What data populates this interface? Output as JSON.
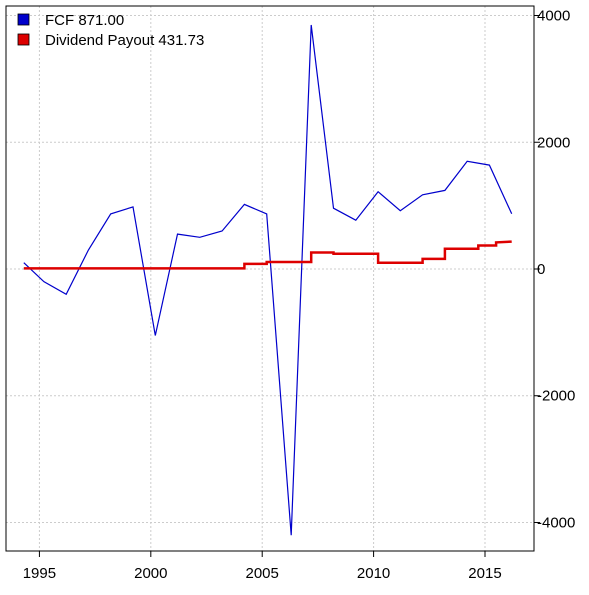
{
  "chart_data": {
    "type": "line",
    "title": "",
    "xlabel": "",
    "ylabel": "",
    "xlim": [
      1993.5,
      2017.2
    ],
    "ylim": [
      -4450,
      4150
    ],
    "x_ticks": [
      1995,
      2000,
      2005,
      2010,
      2015
    ],
    "y_ticks": [
      -4000,
      -2000,
      0,
      2000,
      4000
    ],
    "grid": true,
    "legend_position": "top-left",
    "series": [
      {
        "name": "FCF 871.00",
        "color": "#0000cc",
        "style": "line",
        "points": [
          [
            1994.3,
            100
          ],
          [
            1995.2,
            -200
          ],
          [
            1996.2,
            -400
          ],
          [
            1997.2,
            300
          ],
          [
            1998.2,
            870
          ],
          [
            1999.2,
            980
          ],
          [
            2000.2,
            -1050
          ],
          [
            2001.2,
            550
          ],
          [
            2002.2,
            500
          ],
          [
            2003.2,
            600
          ],
          [
            2004.2,
            1020
          ],
          [
            2005.2,
            870
          ],
          [
            2006.3,
            -4200
          ],
          [
            2007.2,
            3850
          ],
          [
            2008.2,
            960
          ],
          [
            2009.2,
            770
          ],
          [
            2010.2,
            1220
          ],
          [
            2011.2,
            920
          ],
          [
            2012.2,
            1170
          ],
          [
            2013.2,
            1240
          ],
          [
            2014.2,
            1700
          ],
          [
            2015.2,
            1640
          ],
          [
            2016.2,
            871
          ]
        ]
      },
      {
        "name": "Dividend Payout 431.73",
        "color": "#dd0000",
        "style": "step",
        "points": [
          [
            1994.3,
            10
          ],
          [
            2004.2,
            10
          ],
          [
            2004.2,
            80
          ],
          [
            2005.2,
            80
          ],
          [
            2005.2,
            110
          ],
          [
            2007.2,
            110
          ],
          [
            2007.2,
            260
          ],
          [
            2008.2,
            260
          ],
          [
            2008.2,
            240
          ],
          [
            2010.2,
            240
          ],
          [
            2010.2,
            100
          ],
          [
            2012.2,
            100
          ],
          [
            2012.2,
            160
          ],
          [
            2013.2,
            160
          ],
          [
            2013.2,
            320
          ],
          [
            2014.7,
            320
          ],
          [
            2014.7,
            370
          ],
          [
            2015.5,
            370
          ],
          [
            2015.5,
            420
          ],
          [
            2016.2,
            432
          ]
        ]
      }
    ]
  }
}
